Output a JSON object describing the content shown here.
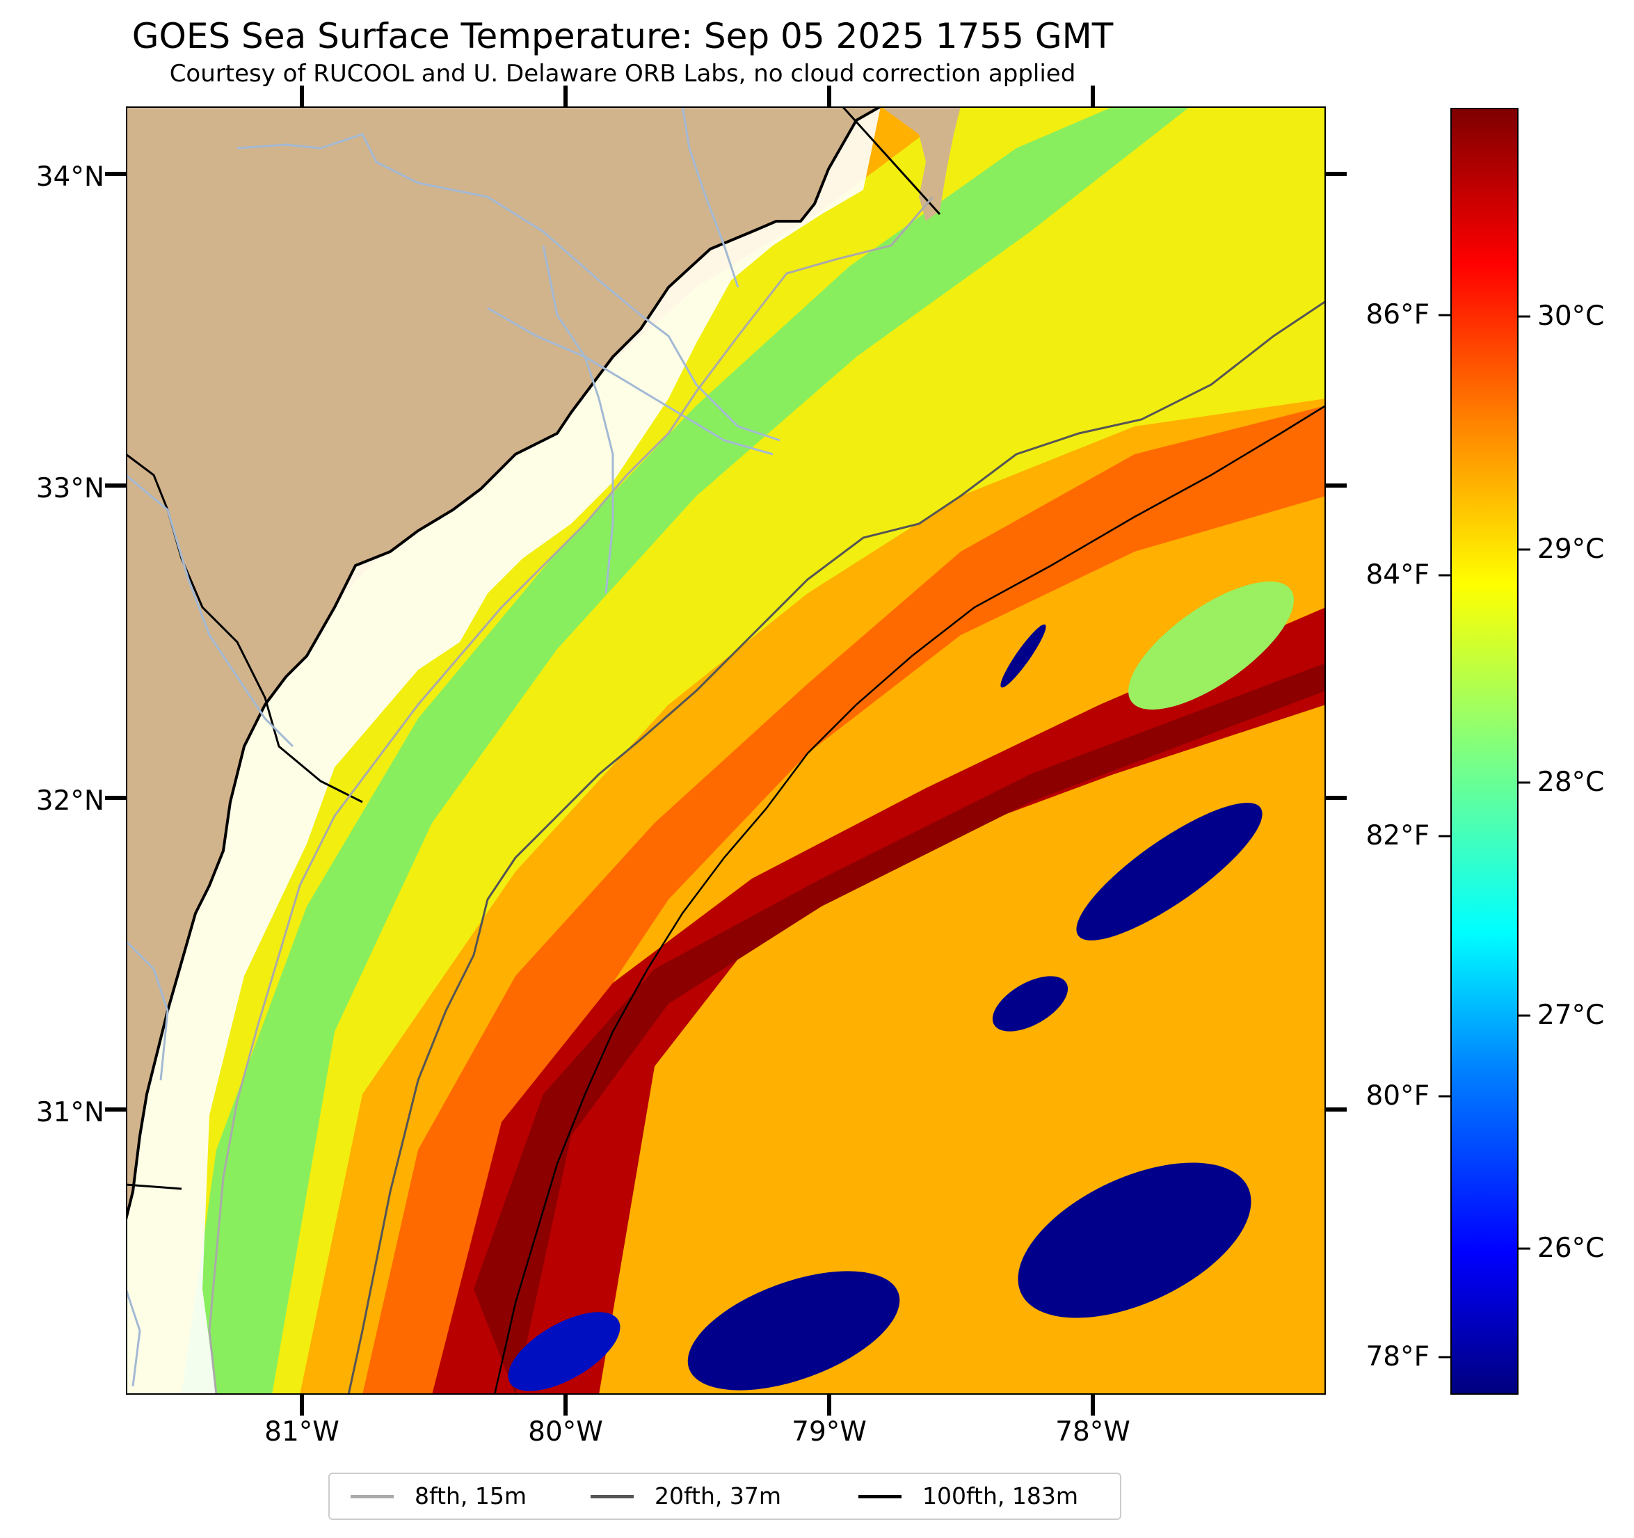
{
  "header": {
    "title": "GOES Sea Surface Temperature: Sep 05 2025 1755 GMT",
    "subtitle": "Courtesy of RUCOOL and U. Delaware ORB Labs, no cloud correction applied"
  },
  "map": {
    "lon_range": [
      -81.67,
      -77.12
    ],
    "lat_range": [
      30.08,
      34.22
    ],
    "lat_ticks": [
      "34°N",
      "33°N",
      "32°N",
      "31°N"
    ],
    "lon_ticks": [
      "81°W",
      "80°W",
      "79°W",
      "78°W"
    ],
    "colors": {
      "land": "#d2b48c",
      "coast": "#000000",
      "rivers": "#a3b9d4",
      "isobath_8fth": "#aaaaaa",
      "isobath_20fth": "#555555",
      "isobath_100fth": "#000000"
    }
  },
  "colorbar": {
    "colormap": "jet",
    "celsius_labels": [
      "30°C",
      "29°C",
      "28°C",
      "27°C",
      "26°C"
    ],
    "fahrenheit_labels": [
      "86°F",
      "84°F",
      "82°F",
      "80°F",
      "78°F"
    ]
  },
  "legend": {
    "items": [
      {
        "label": "8fth, 15m",
        "color": "#aaaaaa"
      },
      {
        "label": "20fth, 37m",
        "color": "#555555"
      },
      {
        "label": "100fth, 183m",
        "color": "#000000"
      }
    ]
  }
}
